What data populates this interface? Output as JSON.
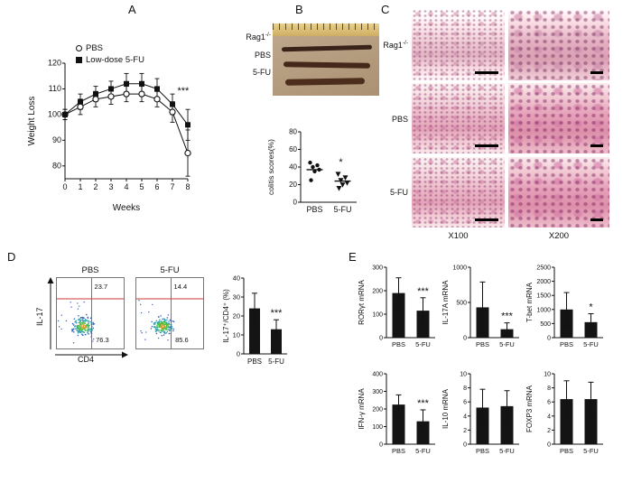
{
  "panels": {
    "A": "A",
    "B": "B",
    "C": "C",
    "D": "D",
    "E": "E"
  },
  "panelA": {
    "legend": [
      {
        "marker": "open-circle",
        "label": "PBS"
      },
      {
        "marker": "filled-square",
        "label": "Low-dose 5-FU"
      }
    ],
    "ylabel": "Weight Loss",
    "xlabel": "Weeks",
    "annotation": "***"
  },
  "panelB": {
    "photo_labels": [
      {
        "base": "Rag1",
        "sup": "-/-"
      },
      {
        "base": "PBS",
        "sup": ""
      },
      {
        "base": "5-FU",
        "sup": ""
      }
    ],
    "scatter_ylabel": "colitis scores(%)",
    "annotation": "*"
  },
  "panelC": {
    "row_labels": [
      {
        "base": "Rag1",
        "sup": "-/-"
      },
      {
        "base": "PBS",
        "sup": ""
      },
      {
        "base": "5-FU",
        "sup": ""
      }
    ],
    "col_labels": [
      "X100",
      "X200"
    ]
  },
  "panelD": {
    "plot_titles": [
      "PBS",
      "5-FU"
    ],
    "yaxis_label": "IL-17",
    "xaxis_label": "CD4",
    "bar_ylabel": "IL-17⁺/CD4⁺ (%)",
    "annotation": "***"
  },
  "chart_data": [
    {
      "id": "weight_loss",
      "panel": "A",
      "type": "line",
      "xlabel": "Weeks",
      "ylabel": "Weight Loss",
      "x": [
        0,
        1,
        2,
        3,
        4,
        5,
        6,
        7,
        8
      ],
      "ylim": [
        75,
        120
      ],
      "yticks": [
        80,
        90,
        100,
        110,
        120
      ],
      "legend_position": "top-left",
      "annotation": "***",
      "series": [
        {
          "name": "PBS",
          "marker": "open-circle",
          "values": [
            100,
            103,
            106,
            107,
            108,
            108,
            106,
            101,
            85
          ],
          "errors": [
            2,
            3,
            3,
            3,
            3,
            3,
            3,
            4,
            9
          ]
        },
        {
          "name": "Low-dose 5-FU",
          "marker": "filled-square",
          "values": [
            100,
            105,
            108,
            110,
            112,
            112,
            110,
            104,
            96
          ],
          "errors": [
            2,
            3,
            3,
            3,
            4,
            4,
            4,
            4,
            6
          ]
        }
      ]
    },
    {
      "id": "colitis",
      "panel": "B",
      "type": "scatter",
      "ylabel": "colitis scores(%)",
      "ylim": [
        0,
        80
      ],
      "yticks": [
        0,
        20,
        40,
        60,
        80
      ],
      "categories": [
        "PBS",
        "5-FU"
      ],
      "annotation": "*",
      "groups": [
        {
          "name": "PBS",
          "marker": "circle",
          "values": [
            45,
            42,
            40,
            37,
            35,
            25
          ],
          "mean": 37
        },
        {
          "name": "5-FU",
          "marker": "triangle-down",
          "values": [
            32,
            28,
            25,
            22,
            20,
            16
          ],
          "mean": 24
        }
      ]
    },
    {
      "id": "flow_pbs",
      "panel": "D",
      "type": "flow",
      "title": "PBS",
      "xaxis": "CD4",
      "yaxis": "IL-17",
      "quadrant_values": {
        "upper_right": "23.7",
        "lower_right": "76.3"
      },
      "seed": 7
    },
    {
      "id": "flow_5fu",
      "panel": "D",
      "type": "flow",
      "title": "5-FU",
      "xaxis": "CD4",
      "yaxis": "IL-17",
      "quadrant_values": {
        "upper_right": "14.4",
        "lower_right": "85.6"
      },
      "seed": 13
    },
    {
      "id": "il17_cd4",
      "panel": "D",
      "type": "bar",
      "ylabel": "IL-17⁺/CD4⁺ (%)",
      "ylim": [
        0,
        40
      ],
      "yticks": [
        0,
        10,
        20,
        30,
        40
      ],
      "categories": [
        "PBS",
        "5-FU"
      ],
      "values": [
        24,
        13
      ],
      "errors": [
        8,
        5
      ],
      "annotation": "***"
    },
    {
      "id": "roryt",
      "panel": "E",
      "type": "bar",
      "ylabel": "RORγt mRNA",
      "ylim": [
        0,
        300
      ],
      "yticks": [
        0,
        100,
        200,
        300
      ],
      "categories": [
        "PBS",
        "5-FU"
      ],
      "values": [
        190,
        115
      ],
      "errors": [
        65,
        55
      ],
      "annotation": "***"
    },
    {
      "id": "il17a",
      "panel": "E",
      "type": "bar",
      "ylabel": "IL-17A mRNA",
      "ylim": [
        0,
        1000
      ],
      "yticks": [
        0,
        500,
        1000
      ],
      "categories": [
        "PBS",
        "5-FU"
      ],
      "values": [
        430,
        120
      ],
      "errors": [
        360,
        90
      ],
      "annotation": "***"
    },
    {
      "id": "tbet",
      "panel": "E",
      "type": "bar",
      "ylabel": "T-bet mRNA",
      "ylim": [
        0,
        2500
      ],
      "yticks": [
        0,
        500,
        1000,
        1500,
        2000,
        2500
      ],
      "categories": [
        "PBS",
        "5-FU"
      ],
      "values": [
        1000,
        550
      ],
      "errors": [
        600,
        300
      ],
      "annotation": "*"
    },
    {
      "id": "ifng",
      "panel": "E",
      "type": "bar",
      "ylabel": "IFN-γ mRNA",
      "ylim": [
        0,
        400
      ],
      "yticks": [
        0,
        100,
        200,
        300,
        400
      ],
      "categories": [
        "PBS",
        "5-FU"
      ],
      "values": [
        225,
        130
      ],
      "errors": [
        55,
        65
      ],
      "annotation": "***"
    },
    {
      "id": "il10",
      "panel": "E",
      "type": "bar",
      "ylabel": "IL-10 mRNA",
      "ylim": [
        0,
        10
      ],
      "yticks": [
        0,
        2,
        4,
        6,
        8,
        10
      ],
      "categories": [
        "PBS",
        "5-FU"
      ],
      "values": [
        5.2,
        5.4
      ],
      "errors": [
        2.6,
        2.2
      ],
      "annotation": ""
    },
    {
      "id": "foxp3",
      "panel": "E",
      "type": "bar",
      "ylabel": "FOXP3 mRNA",
      "ylim": [
        0,
        10
      ],
      "yticks": [
        0,
        2,
        4,
        6,
        8,
        10
      ],
      "categories": [
        "PBS",
        "5-FU"
      ],
      "values": [
        6.4,
        6.4
      ],
      "errors": [
        2.6,
        2.4
      ],
      "annotation": ""
    }
  ]
}
